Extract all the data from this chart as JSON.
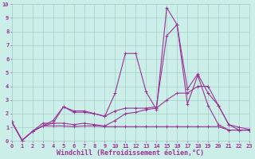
{
  "xlabel": "Windchill (Refroidissement éolien,°C)",
  "xlim": [
    0,
    23
  ],
  "ylim": [
    0,
    10
  ],
  "background_color": "#cceee8",
  "grid_color": "#aad4ce",
  "line_color": "#993399",
  "x": [
    0,
    1,
    2,
    3,
    4,
    5,
    6,
    7,
    8,
    9,
    10,
    11,
    12,
    13,
    14,
    15,
    16,
    17,
    18,
    19,
    20,
    21,
    22,
    23
  ],
  "lines": [
    [
      1.4,
      0.05,
      0.7,
      1.3,
      1.3,
      2.5,
      2.1,
      2.1,
      2.0,
      1.8,
      3.5,
      6.4,
      6.4,
      3.6,
      2.3,
      9.75,
      8.5,
      2.7,
      4.8,
      2.6,
      1.2,
      0.8,
      0.8,
      0.8
    ],
    [
      1.4,
      0.05,
      0.7,
      1.1,
      1.5,
      2.5,
      2.2,
      2.2,
      2.0,
      1.8,
      2.2,
      2.4,
      2.4,
      2.4,
      2.5,
      7.7,
      8.5,
      3.8,
      4.9,
      3.5,
      2.6,
      1.2,
      1.0,
      0.85
    ],
    [
      1.4,
      0.05,
      0.7,
      1.1,
      1.3,
      1.3,
      1.2,
      1.3,
      1.2,
      1.1,
      1.5,
      2.0,
      2.1,
      2.3,
      2.4,
      3.0,
      3.5,
      3.5,
      4.0,
      4.0,
      2.6,
      1.2,
      0.8,
      0.8
    ],
    [
      1.4,
      0.05,
      0.7,
      1.1,
      1.1,
      1.1,
      1.05,
      1.1,
      1.1,
      1.05,
      1.05,
      1.05,
      1.05,
      1.05,
      1.05,
      1.05,
      1.05,
      1.05,
      1.05,
      1.05,
      1.05,
      0.8,
      0.8,
      0.8
    ]
  ],
  "xtick_labels": [
    "0",
    "1",
    "2",
    "3",
    "4",
    "5",
    "6",
    "7",
    "8",
    "9",
    "10",
    "11",
    "12",
    "13",
    "14",
    "15",
    "16",
    "17",
    "18",
    "19",
    "20",
    "21",
    "22",
    "23"
  ],
  "ytick_labels": [
    "0",
    "1",
    "2",
    "3",
    "4",
    "5",
    "6",
    "7",
    "8",
    "9",
    "10"
  ],
  "tick_fontsize": 5.0,
  "xlabel_fontsize": 6.0,
  "linewidth": 0.8,
  "markersize": 2.5
}
